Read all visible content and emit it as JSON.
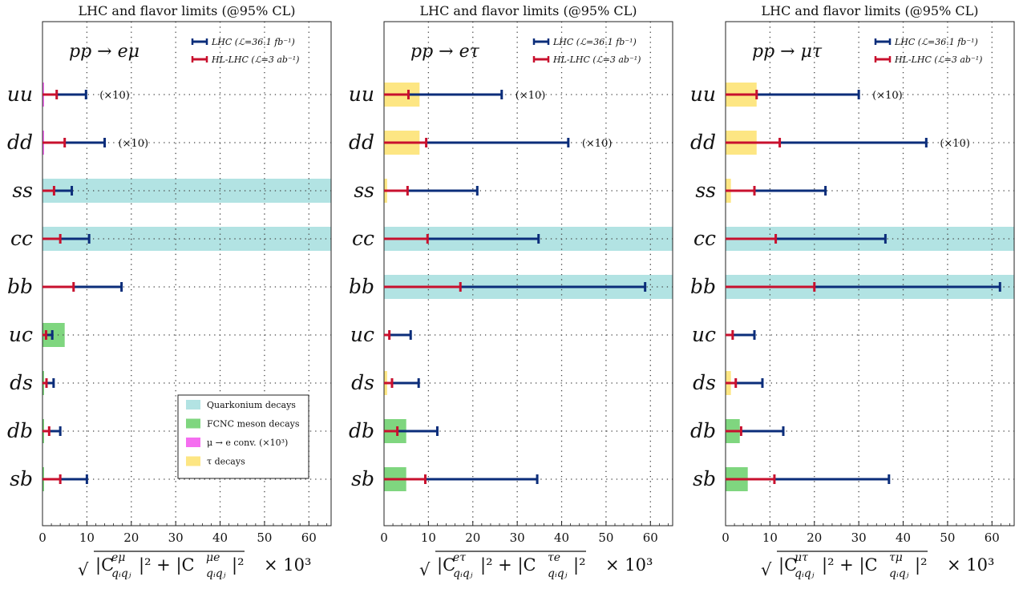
{
  "colors": {
    "lhc": "#0b2d7a",
    "hl": "#c8102e",
    "quarkonium": "#b2e3e3",
    "fcnc": "#7fd67f",
    "mue_conv": "#f56ef0",
    "tau": "#fde683"
  },
  "legend_bands": [
    {
      "key": "quarkonium",
      "label": "Quarkonium decays"
    },
    {
      "key": "fcnc",
      "label": "FCNC meson decays"
    },
    {
      "key": "mue_conv",
      "label": "μ → e conv. (×10³)"
    },
    {
      "key": "tau",
      "label": "τ decays"
    }
  ],
  "chart_data": [
    {
      "type": "bar",
      "title": "LHC and flavor limits (@95% CL)",
      "process": "pp → eμ",
      "legend": [
        "LHC (ℒ=36.1 fb⁻¹)",
        "HL-LHC (ℒ=3 ab⁻¹)"
      ],
      "xlabel": "√|C_{q_iq_j}^{eμ}|² + |C_{q_iq_j}^{μe}|²  × 10³",
      "xlabel_parts": {
        "root": "√",
        "body": "|C",
        "sup1": "eμ",
        "sub": "qᵢqⱼ",
        "mid": "|² + |C",
        "sup2": "μe",
        "tail": "|²",
        "scale": "× 10³"
      },
      "xlim": [
        0,
        65
      ],
      "xticks": [
        0,
        10,
        20,
        30,
        40,
        50,
        60
      ],
      "grid": true,
      "categories": [
        "uu",
        "dd",
        "ss",
        "cc",
        "bb",
        "uc",
        "ds",
        "db",
        "sb"
      ],
      "series": [
        {
          "name": "LHC (ℒ=36.1 fb⁻¹)",
          "values": [
            9.8,
            14.0,
            6.6,
            10.5,
            17.8,
            2.2,
            2.5,
            4.0,
            10.0
          ]
        },
        {
          "name": "HL-LHC (ℒ=3 ab⁻¹)",
          "values": [
            3.2,
            5.0,
            2.6,
            4.0,
            7.0,
            0.8,
            0.9,
            1.5,
            4.0
          ]
        }
      ],
      "annotations": [
        "(×10)",
        "(×10)",
        "",
        "",
        "",
        "",
        "",
        "",
        ""
      ],
      "bands": [
        {
          "row": "uu",
          "kind": "mue_conv",
          "value": 0.3
        },
        {
          "row": "dd",
          "kind": "mue_conv",
          "value": 0.3
        },
        {
          "row": "ss",
          "kind": "quarkonium",
          "value": 65
        },
        {
          "row": "cc",
          "kind": "quarkonium",
          "value": 65
        },
        {
          "row": "uc",
          "kind": "fcnc",
          "value": 5.0
        },
        {
          "row": "ds",
          "kind": "fcnc",
          "value": 0.3
        },
        {
          "row": "db",
          "kind": "fcnc",
          "value": 0.3
        },
        {
          "row": "sb",
          "kind": "fcnc",
          "value": 0.3
        }
      ]
    },
    {
      "type": "bar",
      "title": "LHC and flavor limits (@95% CL)",
      "process": "pp → eτ",
      "legend": [
        "LHC (ℒ=36.1 fb⁻¹)",
        "HL-LHC (ℒ=3 ab⁻¹)"
      ],
      "xlabel": "√|C_{q_iq_j}^{eτ}|² + |C_{q_iq_j}^{τe}|²  × 10³",
      "xlabel_parts": {
        "root": "√",
        "body": "|C",
        "sup1": "eτ",
        "sub": "qᵢqⱼ",
        "mid": "|² + |C",
        "sup2": "τe",
        "tail": "|²",
        "scale": "× 10³"
      },
      "xlim": [
        0,
        65
      ],
      "xticks": [
        0,
        10,
        20,
        30,
        40,
        50,
        60
      ],
      "grid": true,
      "categories": [
        "uu",
        "dd",
        "ss",
        "cc",
        "bb",
        "uc",
        "ds",
        "db",
        "sb"
      ],
      "series": [
        {
          "name": "LHC (ℒ=36.1 fb⁻¹)",
          "values": [
            26.5,
            41.5,
            21.0,
            34.8,
            58.8,
            6.0,
            7.8,
            12.0,
            34.5
          ]
        },
        {
          "name": "HL-LHC (ℒ=3 ab⁻¹)",
          "values": [
            5.5,
            9.5,
            5.3,
            9.8,
            17.2,
            1.2,
            1.8,
            3.0,
            9.3
          ]
        }
      ],
      "annotations": [
        "(×10)",
        "(×10)",
        "",
        "",
        "",
        "",
        "",
        "",
        ""
      ],
      "bands": [
        {
          "row": "uu",
          "kind": "tau",
          "value": 8.0
        },
        {
          "row": "dd",
          "kind": "tau",
          "value": 8.0
        },
        {
          "row": "ss",
          "kind": "tau",
          "value": 0.7
        },
        {
          "row": "cc",
          "kind": "quarkonium",
          "value": 65
        },
        {
          "row": "bb",
          "kind": "quarkonium",
          "value": 65
        },
        {
          "row": "ds",
          "kind": "tau",
          "value": 0.7
        },
        {
          "row": "db",
          "kind": "fcnc",
          "value": 5.0
        },
        {
          "row": "sb",
          "kind": "fcnc",
          "value": 5.0
        }
      ]
    },
    {
      "type": "bar",
      "title": "LHC and flavor limits (@95% CL)",
      "process": "pp → μτ",
      "legend": [
        "LHC (ℒ=36.1 fb⁻¹)",
        "HL-LHC (ℒ=3 ab⁻¹)"
      ],
      "xlabel": "√|C_{q_iq_j}^{μτ}|² + |C_{q_iq_j}^{τμ}|²  × 10³",
      "xlabel_parts": {
        "root": "√",
        "body": "|C",
        "sup1": "μτ",
        "sub": "qᵢqⱼ",
        "mid": "|² + |C",
        "sup2": "τμ",
        "tail": "|²",
        "scale": "× 10³"
      },
      "xlim": [
        0,
        65
      ],
      "xticks": [
        0,
        10,
        20,
        30,
        40,
        50,
        60
      ],
      "grid": true,
      "categories": [
        "uu",
        "dd",
        "ss",
        "cc",
        "bb",
        "uc",
        "ds",
        "db",
        "sb"
      ],
      "series": [
        {
          "name": "LHC (ℒ=36.1 fb⁻¹)",
          "values": [
            30.0,
            45.2,
            22.5,
            36.0,
            61.8,
            6.5,
            8.3,
            13.0,
            36.8
          ]
        },
        {
          "name": "HL-LHC (ℒ=3 ab⁻¹)",
          "values": [
            7.0,
            12.2,
            6.5,
            11.3,
            20.0,
            1.6,
            2.3,
            3.5,
            11.0
          ]
        }
      ],
      "annotations": [
        "(×10)",
        "(×10)",
        "",
        "",
        "",
        "",
        "",
        "",
        ""
      ],
      "bands": [
        {
          "row": "uu",
          "kind": "tau",
          "value": 7.0
        },
        {
          "row": "dd",
          "kind": "tau",
          "value": 7.0
        },
        {
          "row": "ss",
          "kind": "tau",
          "value": 1.2
        },
        {
          "row": "cc",
          "kind": "quarkonium",
          "value": 65
        },
        {
          "row": "bb",
          "kind": "quarkonium",
          "value": 65
        },
        {
          "row": "ds",
          "kind": "tau",
          "value": 1.2
        },
        {
          "row": "db",
          "kind": "fcnc",
          "value": 3.2
        },
        {
          "row": "sb",
          "kind": "fcnc",
          "value": 5.0
        }
      ]
    }
  ]
}
